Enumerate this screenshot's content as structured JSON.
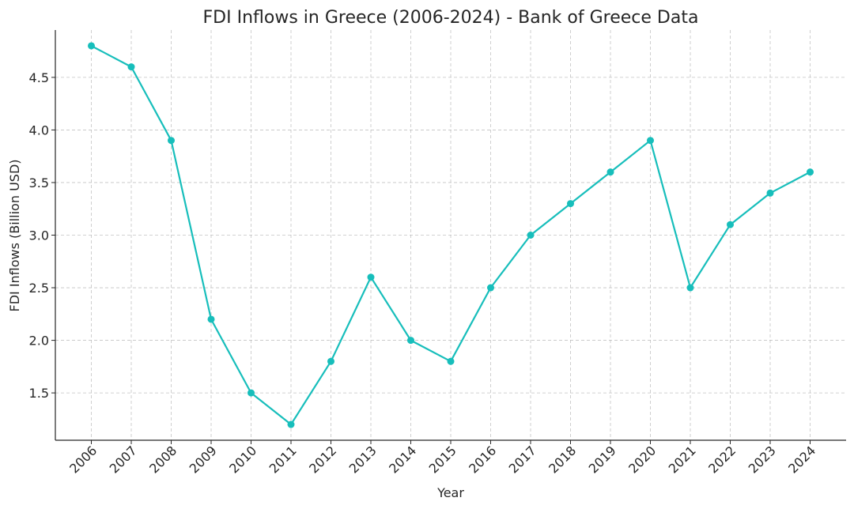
{
  "chart_data": {
    "type": "line",
    "title": "FDI Inflows in Greece (2006-2024) - Bank of Greece Data",
    "xlabel": "Year",
    "ylabel": "FDI Inflows (Billion USD)",
    "categories": [
      "2006",
      "2007",
      "2008",
      "2009",
      "2010",
      "2011",
      "2012",
      "2013",
      "2014",
      "2015",
      "2016",
      "2017",
      "2018",
      "2019",
      "2020",
      "2021",
      "2022",
      "2023",
      "2024"
    ],
    "series": [
      {
        "values": [
          4.8,
          4.6,
          3.9,
          2.2,
          1.5,
          1.2,
          1.8,
          2.6,
          2.0,
          1.8,
          2.5,
          3.0,
          3.3,
          3.6,
          3.9,
          2.5,
          3.1,
          3.4,
          3.6
        ]
      }
    ],
    "ylim": [
      1.05,
      4.95
    ],
    "yticks": [
      "1.5",
      "2.0",
      "2.5",
      "3.0",
      "3.5",
      "4.0",
      "4.5"
    ],
    "grid": true,
    "colors": {
      "line": "#17BEBB"
    },
    "marker": "circle"
  }
}
